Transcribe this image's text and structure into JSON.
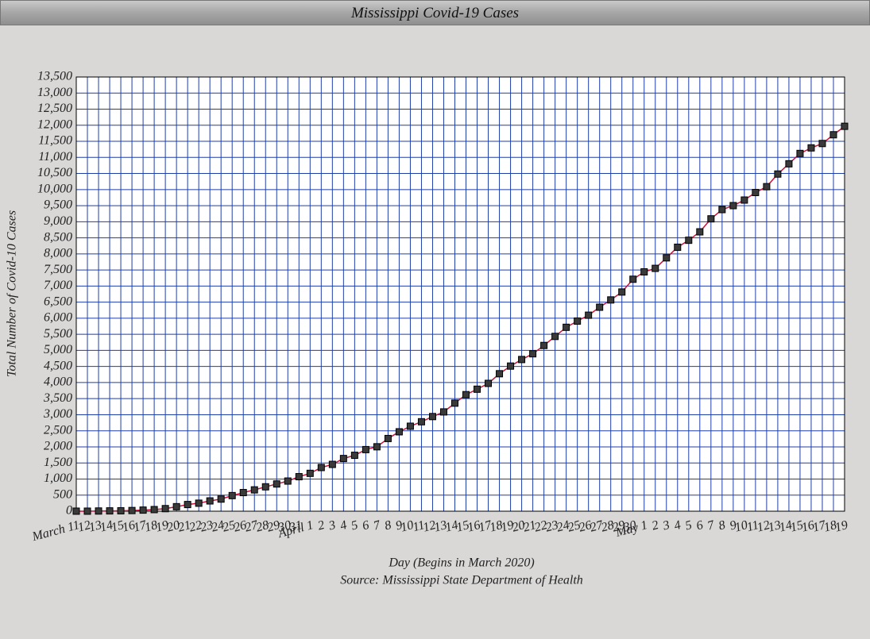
{
  "chart_data": {
    "type": "line",
    "title": "Mississippi Covid-19 Cases",
    "x_label": "Day (Begins in March 2020)",
    "source": "Source: Mississippi State Department of Health",
    "y_label": "Total Number of Covid-10 Cases",
    "categories": [
      "March 11",
      "12",
      "13",
      "14",
      "15",
      "16",
      "17",
      "18",
      "19",
      "20",
      "21",
      "22",
      "23",
      "24",
      "25",
      "26",
      "27",
      "28",
      "29",
      "30",
      "31",
      "April 1",
      "2",
      "3",
      "4",
      "5",
      "6",
      "7",
      "8",
      "9",
      "10",
      "11",
      "12",
      "13",
      "14",
      "15",
      "16",
      "17",
      "18",
      "19",
      "20",
      "21",
      "22",
      "23",
      "24",
      "25",
      "26",
      "27",
      "28",
      "29",
      "30",
      "May 1",
      "2",
      "3",
      "4",
      "5",
      "6",
      "7",
      "8",
      "9",
      "10",
      "11",
      "12",
      "13",
      "14",
      "15",
      "16",
      "17",
      "18",
      "19"
    ],
    "series": [
      {
        "name": "Cases",
        "color": "#d0103a",
        "marker_color": "#3a3a3a",
        "values": [
          1,
          1,
          6,
          10,
          13,
          21,
          34,
          50,
          80,
          140,
          207,
          249,
          320,
          377,
          485,
          579,
          663,
          758,
          847,
          937,
          1073,
          1177,
          1358,
          1455,
          1638,
          1738,
          1915,
          2003,
          2260,
          2469,
          2642,
          2781,
          2942,
          3087,
          3360,
          3624,
          3793,
          3974,
          4274,
          4512,
          4716,
          4894,
          5153,
          5434,
          5718,
          5911,
          6094,
          6342,
          6569,
          6815,
          7212,
          7441,
          7550,
          7877,
          8207,
          8424,
          8686,
          9090,
          9378,
          9501,
          9674,
          9908,
          10090,
          10483,
          10801,
          11123,
          11296,
          11432,
          11704,
          11967
        ]
      }
    ],
    "ylim": [
      0,
      13500
    ],
    "yticks": [
      {
        "value": 0,
        "label": "0"
      },
      {
        "value": 500,
        "label": "500"
      },
      {
        "value": 1000,
        "label": "1,000"
      },
      {
        "value": 1500,
        "label": "1,500"
      },
      {
        "value": 2000,
        "label": "2,000"
      },
      {
        "value": 2500,
        "label": "2,500"
      },
      {
        "value": 3000,
        "label": "3,000"
      },
      {
        "value": 3500,
        "label": "3,500"
      },
      {
        "value": 4000,
        "label": "4,000"
      },
      {
        "value": 4500,
        "label": "4,500"
      },
      {
        "value": 5000,
        "label": "5,000"
      },
      {
        "value": 5500,
        "label": "5,500"
      },
      {
        "value": 6000,
        "label": "6,000"
      },
      {
        "value": 6500,
        "label": "6,500"
      },
      {
        "value": 7000,
        "label": "7,000"
      },
      {
        "value": 7500,
        "label": "7,500"
      },
      {
        "value": 8000,
        "label": "8,000"
      },
      {
        "value": 8500,
        "label": "8,500"
      },
      {
        "value": 9000,
        "label": "9,000"
      },
      {
        "value": 9500,
        "label": "9,500"
      },
      {
        "value": 10000,
        "label": "10,000"
      },
      {
        "value": 10500,
        "label": "10,500"
      },
      {
        "value": 11000,
        "label": "11,000"
      },
      {
        "value": 11500,
        "label": "11,500"
      },
      {
        "value": 12000,
        "label": "12,000"
      },
      {
        "value": 12500,
        "label": "12,500"
      },
      {
        "value": 13000,
        "label": "13,000"
      },
      {
        "value": 13500,
        "label": "13,500"
      }
    ],
    "grid": true,
    "grid_color": "#1f3fa8"
  }
}
